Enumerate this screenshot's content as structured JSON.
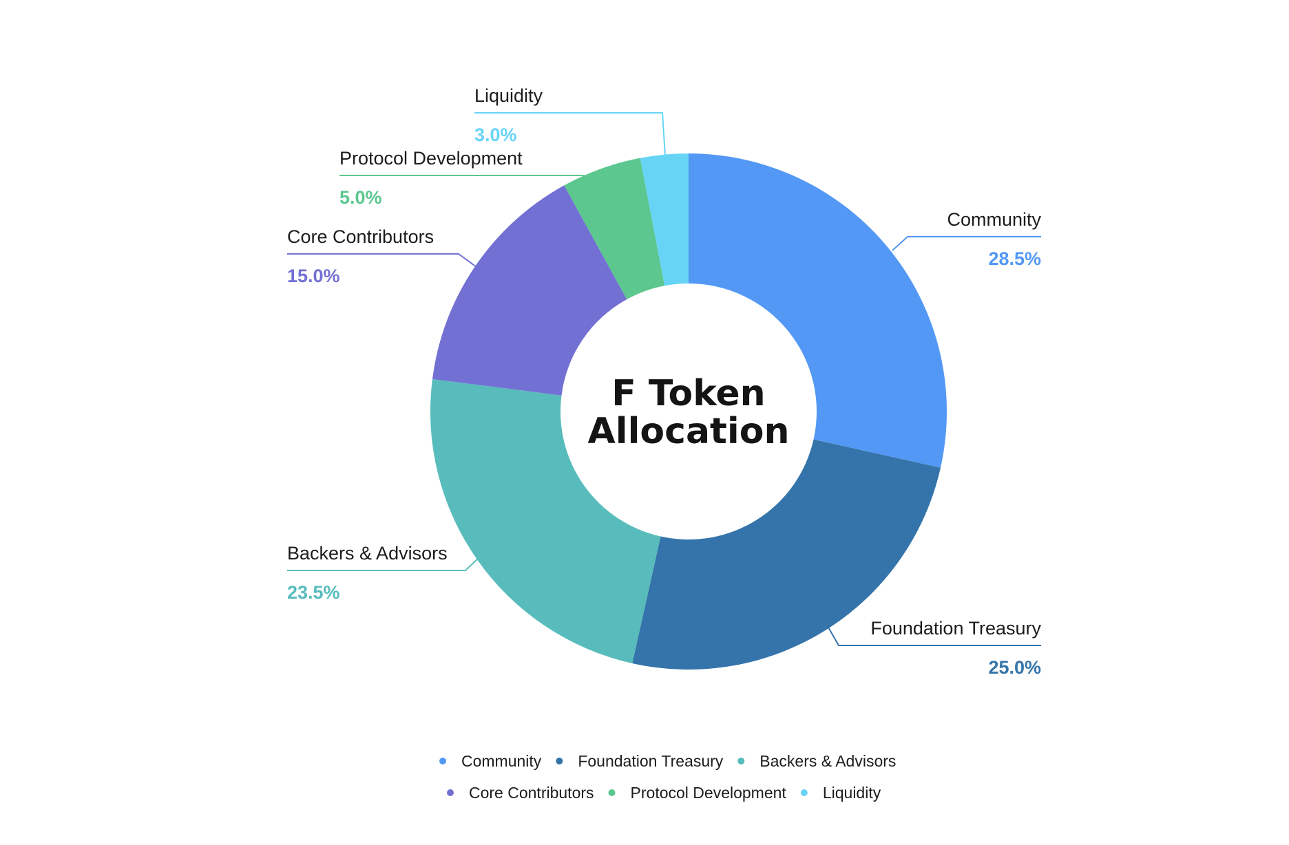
{
  "chart_data": {
    "type": "pie",
    "variant": "donut",
    "title": "F Token Allocation",
    "title_lines": [
      "F Token",
      "Allocation"
    ],
    "slices": [
      {
        "label": "Community",
        "value": 28.5,
        "value_label": "28.5%",
        "color": "#5398f4"
      },
      {
        "label": "Foundation Treasury",
        "value": 25.0,
        "value_label": "25.0%",
        "color": "#3474aa"
      },
      {
        "label": "Backers & Advisors",
        "value": 23.5,
        "value_label": "23.5%",
        "color": "#58bcbc"
      },
      {
        "label": "Core Contributors",
        "value": 15.0,
        "value_label": "15.0%",
        "color": "#7370d4"
      },
      {
        "label": "Protocol Development",
        "value": 5.0,
        "value_label": "5.0%",
        "color": "#5cc78e"
      },
      {
        "label": "Liquidity",
        "value": 3.0,
        "value_label": "3.0%",
        "color": "#67d4f6"
      }
    ],
    "legend": {
      "position": "bottom",
      "rows": [
        [
          "Community",
          "Foundation Treasury",
          "Backers & Advisors"
        ],
        [
          "Core Contributors",
          "Protocol Development",
          "Liquidity"
        ]
      ]
    }
  }
}
